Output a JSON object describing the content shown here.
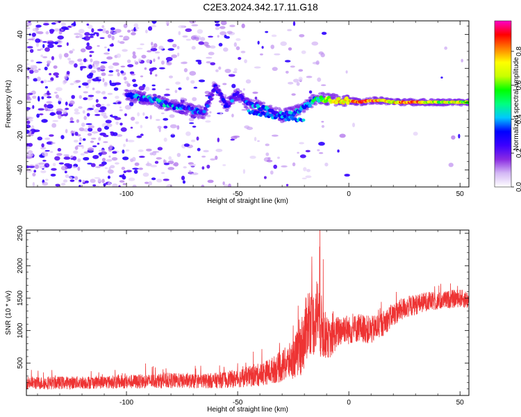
{
  "title": "C2E3.2024.342.17.11.G18",
  "chart_data": [
    {
      "type": "heatmap",
      "xlabel": "Height of straight line (km)",
      "ylabel": "Frequency (Hz)",
      "xlim": [
        -145,
        54
      ],
      "ylim": [
        -50,
        48
      ],
      "xticks": [
        -100,
        -50,
        0,
        50
      ],
      "yticks": [
        -40,
        -20,
        0,
        20,
        40
      ],
      "colorbar": {
        "label": "Normalized spectral amplitude",
        "range": [
          0,
          0.98
        ],
        "ticks": [
          0.0,
          0.2,
          0.4,
          0.6,
          0.8
        ],
        "tick_labels": [
          "0.0",
          "0.2",
          "0.4",
          "0.6",
          "0.8"
        ],
        "colormap": [
          "#ffffff",
          "#d4b8f5",
          "#8a2be2",
          "#3c00ff",
          "#0000ff",
          "#00c8ff",
          "#00ff80",
          "#00ff00",
          "#c8ff00",
          "#ffff00",
          "#ff8000",
          "#ff0000",
          "#ff00c8"
        ]
      },
      "ridge": [
        {
          "x": -100,
          "freq": 4,
          "amp": 0.3
        },
        {
          "x": -95,
          "freq": 3,
          "amp": 0.35
        },
        {
          "x": -90,
          "freq": 2,
          "amp": 0.35
        },
        {
          "x": -85,
          "freq": 0,
          "amp": 0.35
        },
        {
          "x": -80,
          "freq": -2,
          "amp": 0.35
        },
        {
          "x": -75,
          "freq": -3,
          "amp": 0.3
        },
        {
          "x": -70,
          "freq": -5,
          "amp": 0.3
        },
        {
          "x": -65,
          "freq": -6,
          "amp": 0.3
        },
        {
          "x": -60,
          "freq": 9,
          "amp": 0.2
        },
        {
          "x": -55,
          "freq": -2,
          "amp": 0.3
        },
        {
          "x": -50,
          "freq": 5,
          "amp": 0.3
        },
        {
          "x": -45,
          "freq": -1,
          "amp": 0.3
        },
        {
          "x": -40,
          "freq": -3,
          "amp": 0.35
        },
        {
          "x": -35,
          "freq": -5,
          "amp": 0.35
        },
        {
          "x": -30,
          "freq": -8,
          "amp": 0.35
        },
        {
          "x": -25,
          "freq": -6,
          "amp": 0.35
        },
        {
          "x": -20,
          "freq": -3,
          "amp": 0.4
        },
        {
          "x": -15,
          "freq": 2,
          "amp": 0.45
        },
        {
          "x": -10,
          "freq": 2,
          "amp": 0.6
        },
        {
          "x": -5,
          "freq": 1,
          "amp": 0.7
        },
        {
          "x": 0,
          "freq": 1,
          "amp": 0.75
        },
        {
          "x": 5,
          "freq": 0,
          "amp": 0.85
        },
        {
          "x": 10,
          "freq": 1,
          "amp": 0.85
        },
        {
          "x": 15,
          "freq": 1,
          "amp": 0.7
        },
        {
          "x": 20,
          "freq": 0,
          "amp": 0.7
        },
        {
          "x": 25,
          "freq": 0,
          "amp": 0.85
        },
        {
          "x": 30,
          "freq": 0,
          "amp": 0.85
        },
        {
          "x": 35,
          "freq": 0,
          "amp": 0.7
        },
        {
          "x": 40,
          "freq": 0,
          "amp": 0.65
        },
        {
          "x": 45,
          "freq": 0,
          "amp": 0.65
        },
        {
          "x": 50,
          "freq": 0,
          "amp": 0.65
        },
        {
          "x": 54,
          "freq": 0,
          "amp": 0.6
        }
      ]
    },
    {
      "type": "line",
      "xlabel": "Height of straight line (km)",
      "ylabel": "SNR (10 * v/v)",
      "xlim": [
        -145,
        54
      ],
      "ylim": [
        0,
        2550
      ],
      "xticks": [
        -100,
        -50,
        0,
        50
      ],
      "yticks": [
        500,
        1000,
        1500,
        2000,
        2500
      ],
      "series": [
        {
          "color": "#ee3333",
          "x": [
            -145,
            -140,
            -130,
            -120,
            -110,
            -100,
            -90,
            -80,
            -70,
            -60,
            -50,
            -45,
            -40,
            -35,
            -30,
            -25,
            -22,
            -20,
            -18,
            -16,
            -14,
            -12,
            -10,
            -8,
            -6,
            -4,
            -2,
            0,
            5,
            10,
            15,
            20,
            25,
            30,
            35,
            40,
            45,
            50,
            54
          ],
          "y": [
            200,
            190,
            195,
            200,
            205,
            210,
            220,
            230,
            220,
            230,
            260,
            290,
            320,
            380,
            450,
            560,
            700,
            900,
            1200,
            1100,
            1300,
            1000,
            900,
            850,
            950,
            1000,
            1050,
            1000,
            1050,
            1000,
            1100,
            1250,
            1350,
            1400,
            1450,
            1450,
            1480,
            1500,
            1470
          ],
          "noise": [
            100,
            100,
            100,
            100,
            100,
            110,
            110,
            120,
            110,
            120,
            140,
            160,
            180,
            200,
            250,
            300,
            420,
            500,
            550,
            500,
            600,
            500,
            320,
            280,
            260,
            250,
            240,
            220,
            220,
            220,
            200,
            180,
            170,
            160,
            150,
            140,
            140,
            140,
            140
          ],
          "spikes": [
            {
              "x": -13,
              "y": 2550
            },
            {
              "x": -11.5,
              "y": 2100
            }
          ]
        }
      ]
    }
  ]
}
